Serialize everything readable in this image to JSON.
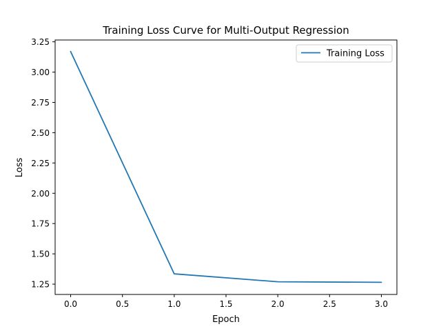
{
  "chart_data": {
    "type": "line",
    "title": "Training Loss Curve for Multi-Output Regression",
    "xlabel": "Epoch",
    "ylabel": "Loss",
    "x": [
      0,
      1,
      2,
      3
    ],
    "series": [
      {
        "name": "Training Loss",
        "values": [
          3.17,
          1.335,
          1.27,
          1.265
        ],
        "color": "#1f77b4"
      }
    ],
    "xlim": [
      -0.15,
      3.15
    ],
    "ylim": [
      1.165,
      3.265
    ],
    "xticks": [
      0.0,
      0.5,
      1.0,
      1.5,
      2.0,
      2.5,
      3.0
    ],
    "xtick_labels": [
      "0.0",
      "0.5",
      "1.0",
      "1.5",
      "2.0",
      "2.5",
      "3.0"
    ],
    "yticks": [
      1.25,
      1.5,
      1.75,
      2.0,
      2.25,
      2.5,
      2.75,
      3.0,
      3.25
    ],
    "ytick_labels": [
      "1.25",
      "1.50",
      "1.75",
      "2.00",
      "2.25",
      "2.50",
      "2.75",
      "3.00",
      "3.25"
    ],
    "grid": false,
    "legend_position": "top-right"
  }
}
